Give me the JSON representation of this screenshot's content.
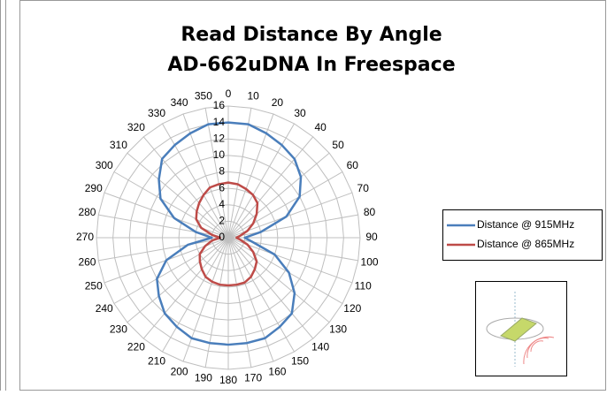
{
  "chart_data": {
    "type": "radar",
    "title": "Read Distance By Angle",
    "subtitle": "AD-662uDNA In Freespace",
    "categories": [
      "0",
      "10",
      "20",
      "30",
      "40",
      "50",
      "60",
      "70",
      "80",
      "90",
      "100",
      "110",
      "120",
      "130",
      "140",
      "150",
      "160",
      "170",
      "180",
      "190",
      "200",
      "210",
      "220",
      "230",
      "240",
      "250",
      "260",
      "270",
      "280",
      "290",
      "300",
      "310",
      "320",
      "330",
      "340",
      "350"
    ],
    "series": [
      {
        "name": "Distance @ 915MHz",
        "color": "#4a7ebb",
        "values": [
          14,
          14,
          13.5,
          13,
          12.5,
          11.5,
          10,
          7.5,
          4,
          2,
          3,
          6,
          8.5,
          10.5,
          12,
          12.5,
          13,
          13,
          13,
          13,
          13,
          12.5,
          12,
          11,
          10,
          8,
          5,
          2,
          4,
          7,
          9.5,
          11,
          12.5,
          13,
          13.5,
          14
        ]
      },
      {
        "name": "Distance @ 865MHz",
        "color": "#be4b48",
        "values": [
          6.7,
          6.6,
          6.3,
          6,
          5.5,
          4.5,
          3.5,
          2.5,
          1.5,
          1,
          1.5,
          2.5,
          3.5,
          4.5,
          5,
          5.5,
          5.8,
          5.8,
          5.8,
          5.8,
          5.7,
          5.5,
          5,
          4.5,
          4,
          3,
          2,
          1,
          2,
          3.5,
          4.5,
          5,
          5.5,
          6,
          6.5,
          6.6
        ]
      }
    ],
    "ylim": [
      0,
      16
    ],
    "yticks": [
      0,
      2,
      4,
      6,
      8,
      10,
      12,
      14,
      16
    ],
    "grid": true,
    "legend": "right"
  }
}
